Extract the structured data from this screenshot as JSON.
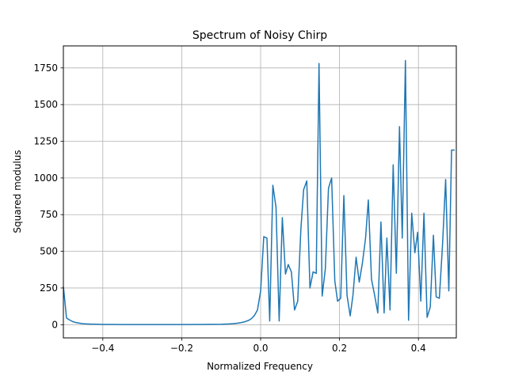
{
  "chart_data": {
    "type": "line",
    "title": "Spectrum of Noisy Chirp",
    "xlabel": "Normalized Frequency",
    "ylabel": "Squared modulus",
    "xlim": [
      -0.5,
      0.496
    ],
    "ylim": [
      -90,
      1900
    ],
    "xticks": [
      -0.4,
      -0.2,
      0.0,
      0.2,
      0.4
    ],
    "xtick_labels": [
      "−0.4",
      "−0.2",
      "0.0",
      "0.2",
      "0.4"
    ],
    "yticks": [
      0,
      250,
      500,
      750,
      1000,
      1250,
      1500,
      1750
    ],
    "ytick_labels": [
      "0",
      "250",
      "500",
      "750",
      "1000",
      "1250",
      "1500",
      "1750"
    ],
    "grid": true,
    "line_color": "#1f77b4",
    "series": [
      {
        "x": [
          -0.5,
          -0.492,
          -0.484,
          -0.477,
          -0.469,
          -0.461,
          -0.453,
          -0.445,
          -0.438,
          -0.43,
          -0.422,
          -0.414,
          -0.406,
          -0.398,
          -0.391,
          -0.383,
          -0.375,
          -0.35,
          -0.3,
          -0.25,
          -0.2,
          -0.15,
          -0.1,
          -0.08,
          -0.07,
          -0.06,
          -0.05,
          -0.04,
          -0.03,
          -0.023,
          -0.016,
          -0.008,
          0.0,
          0.008,
          0.016,
          0.023,
          0.031,
          0.039,
          0.047,
          0.055,
          0.063,
          0.07,
          0.078,
          0.086,
          0.094,
          0.102,
          0.109,
          0.117,
          0.125,
          0.133,
          0.141,
          0.148,
          0.156,
          0.164,
          0.172,
          0.18,
          0.188,
          0.195,
          0.203,
          0.211,
          0.219,
          0.227,
          0.234,
          0.242,
          0.25,
          0.258,
          0.266,
          0.273,
          0.281,
          0.289,
          0.297,
          0.305,
          0.313,
          0.32,
          0.328,
          0.336,
          0.344,
          0.352,
          0.359,
          0.367,
          0.375,
          0.383,
          0.391,
          0.398,
          0.406,
          0.414,
          0.422,
          0.43,
          0.438,
          0.445,
          0.453,
          0.461,
          0.469,
          0.477,
          0.484,
          0.492
        ],
        "y": [
          260,
          45,
          32,
          22,
          15,
          11,
          8,
          6,
          5,
          4,
          3.5,
          3,
          2.5,
          2,
          2,
          1.8,
          1.5,
          1.2,
          1,
          1,
          1,
          1.5,
          3,
          5,
          7,
          10,
          14,
          20,
          30,
          42,
          62,
          100,
          230,
          600,
          590,
          25,
          950,
          800,
          25,
          730,
          345,
          410,
          360,
          100,
          160,
          650,
          920,
          980,
          250,
          360,
          350,
          1780,
          195,
          380,
          930,
          1000,
          300,
          160,
          180,
          880,
          200,
          60,
          200,
          460,
          290,
          420,
          590,
          850,
          310,
          200,
          80,
          700,
          80,
          590,
          100,
          1090,
          350,
          1350,
          590,
          1800,
          30,
          760,
          490,
          630,
          160,
          760,
          50,
          120,
          610,
          190,
          180,
          540,
          990,
          230,
          1190,
          1190
        ]
      }
    ]
  }
}
